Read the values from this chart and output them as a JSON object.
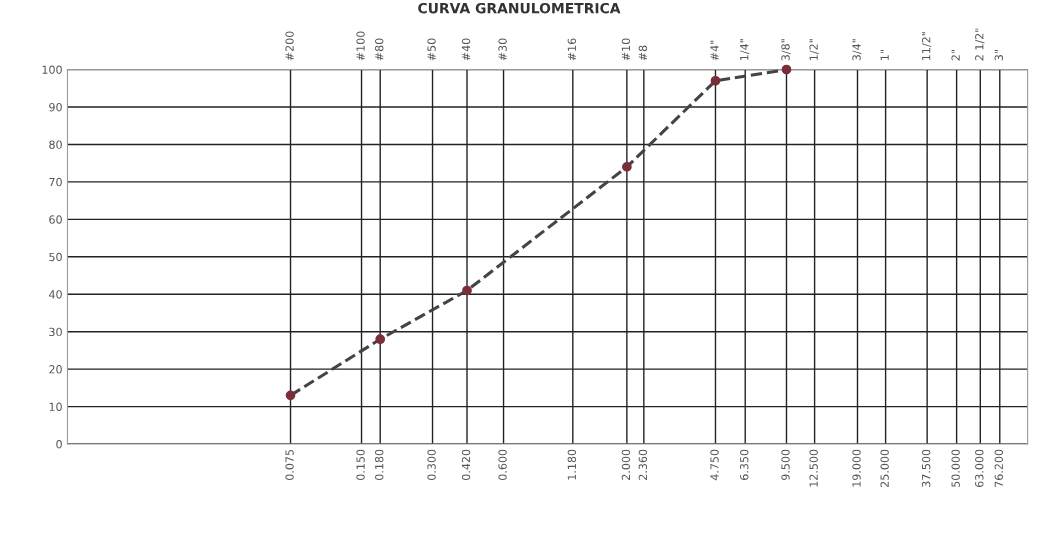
{
  "chart_data": {
    "type": "line",
    "title": "CURVA GRANULOMETRICA",
    "log": "x",
    "grid": true,
    "marker": "circle",
    "line_style": "dashed",
    "xlim": [
      0.0085,
      100
    ],
    "ylim": [
      0,
      100
    ],
    "yticks": [
      0,
      10,
      20,
      30,
      40,
      50,
      60,
      70,
      80,
      90,
      100
    ],
    "xticks": [
      {
        "value": 0.075,
        "label": "0.075"
      },
      {
        "value": 0.15,
        "label": "0.150"
      },
      {
        "value": 0.18,
        "label": "0.180"
      },
      {
        "value": 0.3,
        "label": "0.300"
      },
      {
        "value": 0.42,
        "label": "0.420"
      },
      {
        "value": 0.6,
        "label": "0.600"
      },
      {
        "value": 1.18,
        "label": "1.180"
      },
      {
        "value": 2.0,
        "label": "2.000"
      },
      {
        "value": 2.36,
        "label": "2.360"
      },
      {
        "value": 4.75,
        "label": "4.750"
      },
      {
        "value": 6.35,
        "label": "6.350"
      },
      {
        "value": 9.5,
        "label": "9.500"
      },
      {
        "value": 12.5,
        "label": "12.500"
      },
      {
        "value": 19.0,
        "label": "19.000"
      },
      {
        "value": 25.0,
        "label": "25.000"
      },
      {
        "value": 37.5,
        "label": "37.500"
      },
      {
        "value": 50.0,
        "label": "50.000"
      },
      {
        "value": 63.0,
        "label": "63.000"
      },
      {
        "value": 76.2,
        "label": "76.200"
      }
    ],
    "annotations": [
      "#200",
      "#100",
      "#80",
      "#50",
      "#40",
      "#30",
      "#16",
      "#10",
      "#8",
      "#4\"",
      "1/4\"",
      "3/8\"",
      "1/2\"",
      "3/4\"",
      "1\"",
      "11/2\"",
      "2\"",
      "2 1/2\"",
      "3\""
    ],
    "x": [
      0.075,
      0.18,
      0.42,
      2.0,
      4.75,
      9.5
    ],
    "series": [
      {
        "color": "#444444",
        "marker": "none",
        "values": [
          13,
          28,
          41,
          74,
          97,
          100
        ]
      },
      {
        "type": "scatter",
        "color": "#7a2e3a",
        "values": [
          13,
          28,
          41,
          74,
          97,
          100
        ]
      }
    ]
  }
}
